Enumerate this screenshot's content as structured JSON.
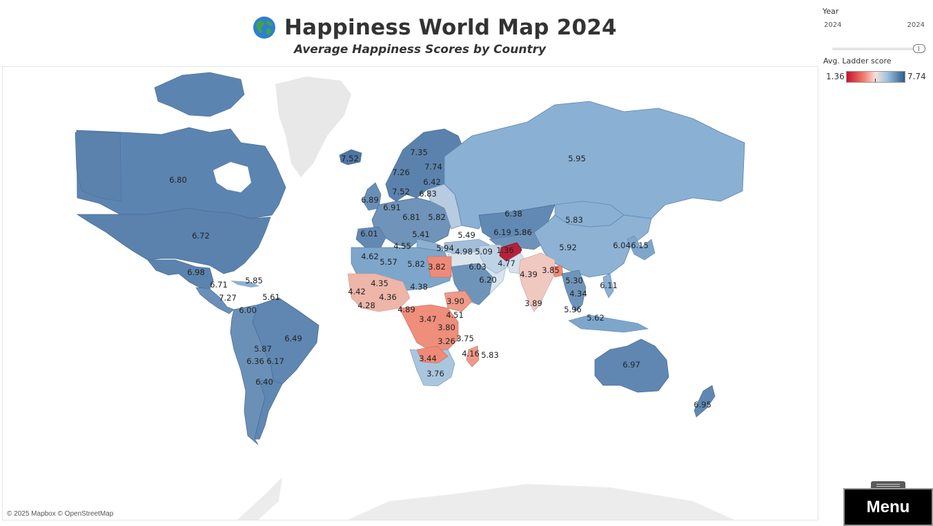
{
  "header": {
    "title": "Happiness World Map 2024",
    "subtitle": "Average Happiness Scores by Country",
    "title_icon": "globe-icon"
  },
  "filters": {
    "year_label": "Year",
    "year_min": "2024",
    "year_max": "2024",
    "year_selected": 2024
  },
  "legend": {
    "title": "Avg. Ladder score",
    "min": "1.36",
    "max": "7.74",
    "colors": {
      "low": "#c8102e",
      "mid": "#f5e0dc",
      "high": "#2d5c8f"
    }
  },
  "attribution": "© 2025 Mapbox © OpenStreetMap",
  "menu": {
    "label": "Menu"
  },
  "map": {
    "land_color": "#e8e8e8",
    "country_scores": [
      {
        "country": "Canada",
        "score": "6.80"
      },
      {
        "country": "United States",
        "score": "6.72"
      },
      {
        "country": "Mexico",
        "score": "6.98"
      },
      {
        "country": "Guatemala",
        "score": "6.71"
      },
      {
        "country": "Dominican Republic",
        "score": "5.85"
      },
      {
        "country": "Costa Rica",
        "score": "7.27"
      },
      {
        "country": "Venezuela",
        "score": "5.61"
      },
      {
        "country": "Colombia",
        "score": "6.00"
      },
      {
        "country": "Brazil",
        "score": "6.49"
      },
      {
        "country": "Peru",
        "score": "5.87"
      },
      {
        "country": "Chile",
        "score": "6.36"
      },
      {
        "country": "Paraguay",
        "score": "6.17"
      },
      {
        "country": "Argentina",
        "score": "6.40"
      },
      {
        "country": "Iceland",
        "score": "7.52"
      },
      {
        "country": "Norway",
        "score": "7.26"
      },
      {
        "country": "Sweden",
        "score": "7.35"
      },
      {
        "country": "Finland",
        "score": "7.74"
      },
      {
        "country": "Estonia",
        "score": "6.42"
      },
      {
        "country": "Denmark",
        "score": "7.52"
      },
      {
        "country": "Lithuania",
        "score": "6.83"
      },
      {
        "country": "Ireland",
        "score": "6.89"
      },
      {
        "country": "Netherlands",
        "score": "6.91"
      },
      {
        "country": "Czechia",
        "score": "6.81"
      },
      {
        "country": "Ukraine",
        "score": "5.82"
      },
      {
        "country": "Spain",
        "score": "6.01"
      },
      {
        "country": "Greece",
        "score": "5.41"
      },
      {
        "country": "Turkey",
        "score": "5.49"
      },
      {
        "country": "Tunisia",
        "score": "4.55"
      },
      {
        "country": "Morocco",
        "score": "4.62"
      },
      {
        "country": "Algeria",
        "score": "5.57"
      },
      {
        "country": "Libya",
        "score": "5.82"
      },
      {
        "country": "Egypt",
        "score": "3.82"
      },
      {
        "country": "Jordan",
        "score": "5.94"
      },
      {
        "country": "Iraq",
        "score": "4.98"
      },
      {
        "country": "Iran",
        "score": "5.09"
      },
      {
        "country": "Saudi Arabia",
        "score": "6.03"
      },
      {
        "country": "Kazakhstan",
        "score": "6.38"
      },
      {
        "country": "Uzbekistan",
        "score": "6.19"
      },
      {
        "country": "Kyrgyzstan",
        "score": "5.86"
      },
      {
        "country": "Afghanistan",
        "score": "1.36"
      },
      {
        "country": "Pakistan",
        "score": "4.77"
      },
      {
        "country": "Russia",
        "score": "5.95"
      },
      {
        "country": "Mongolia",
        "score": "5.83"
      },
      {
        "country": "China",
        "score": "5.92"
      },
      {
        "country": "South Korea",
        "score": "6.04"
      },
      {
        "country": "Japan",
        "score": "6.15"
      },
      {
        "country": "India",
        "score": "4.39"
      },
      {
        "country": "Bangladesh",
        "score": "3.85"
      },
      {
        "country": "Sri Lanka",
        "score": "3.89"
      },
      {
        "country": "Thailand",
        "score": "5.30"
      },
      {
        "country": "Cambodia",
        "score": "4.34"
      },
      {
        "country": "Philippines",
        "score": "6.11"
      },
      {
        "country": "Malaysia",
        "score": "5.96"
      },
      {
        "country": "Indonesia",
        "score": "5.62"
      },
      {
        "country": "Australia",
        "score": "6.97"
      },
      {
        "country": "New Zealand",
        "score": "6.95"
      },
      {
        "country": "Mali",
        "score": "4.35"
      },
      {
        "country": "Niger",
        "score": "4.38"
      },
      {
        "country": "Sierra Leone",
        "score": "4.42"
      },
      {
        "country": "Liberia",
        "score": "4.28"
      },
      {
        "country": "Ghana",
        "score": "4.36"
      },
      {
        "country": "Cameroon",
        "score": "4.89"
      },
      {
        "country": "Ethiopia",
        "score": "3.90"
      },
      {
        "country": "Oman",
        "score": "6.20"
      },
      {
        "country": "Congo (Kinshasa)",
        "score": "3.47"
      },
      {
        "country": "Kenya",
        "score": "4.51"
      },
      {
        "country": "Tanzania",
        "score": "3.80"
      },
      {
        "country": "Malawi",
        "score": "3.26"
      },
      {
        "country": "Mozambique",
        "score": "3.75"
      },
      {
        "country": "Zambia",
        "score": "3.44"
      },
      {
        "country": "Madagascar",
        "score": "4.16"
      },
      {
        "country": "Mauritius",
        "score": "5.83"
      },
      {
        "country": "South Africa",
        "score": "3.76"
      }
    ]
  }
}
